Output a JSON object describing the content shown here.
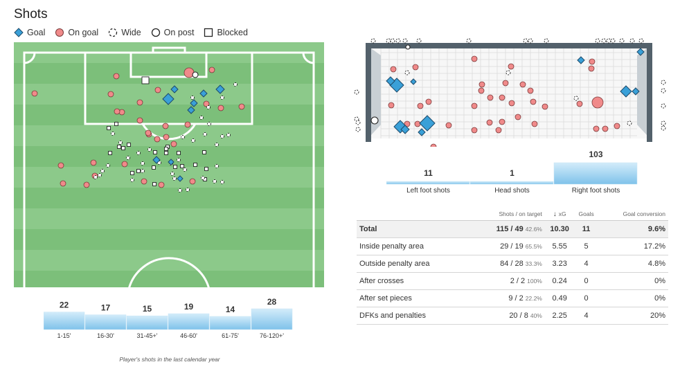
{
  "title": "Shots",
  "legend": [
    {
      "label": "Goal",
      "icon": "diamond-icon",
      "color": "#3aa0d8"
    },
    {
      "label": "On goal",
      "icon": "circle-icon",
      "color": "#f08a8a"
    },
    {
      "label": "Wide",
      "icon": "dashed-circle-icon"
    },
    {
      "label": "On post",
      "icon": "ring-icon"
    },
    {
      "label": "Blocked",
      "icon": "square-icon"
    }
  ],
  "colors": {
    "pitch_light": "#8cc98a",
    "pitch_dark": "#7cbf7a",
    "goal": "#3aa0d8",
    "on_goal": "#f08a8a",
    "bar_top": "#c8e6f6",
    "bar_bottom": "#7fc2ea",
    "goal_frame": "#53616b"
  },
  "minute_bars": [
    {
      "label": "1-15'",
      "value": 22
    },
    {
      "label": "16-30'",
      "value": 17
    },
    {
      "label": "31-45+'",
      "value": 15
    },
    {
      "label": "46-60'",
      "value": 19
    },
    {
      "label": "61-75'",
      "value": 14
    },
    {
      "label": "76-120+'",
      "value": 28
    }
  ],
  "caption": "Player's shots in the last calendar year",
  "foot_bars": [
    {
      "label": "Left foot shots",
      "value": 11
    },
    {
      "label": "Head shots",
      "value": 1
    },
    {
      "label": "Right foot shots",
      "value": 103
    }
  ],
  "table": {
    "headers": [
      "",
      "Shots / on target",
      "xG",
      "Goals",
      "Goal conversion"
    ],
    "sort_arrow": "↓",
    "rows": [
      {
        "label": "Total",
        "shots": "115 / 49",
        "pct": "42.6%",
        "xg": "10.30",
        "goals": "11",
        "conv": "9.6%"
      },
      {
        "label": "Inside penalty area",
        "shots": "29 / 19",
        "pct": "65.5%",
        "xg": "5.55",
        "goals": "5",
        "conv": "17.2%"
      },
      {
        "label": "Outside penalty area",
        "shots": "84 / 28",
        "pct": "33.3%",
        "xg": "3.23",
        "goals": "4",
        "conv": "4.8%"
      },
      {
        "label": "After crosses",
        "shots": "2 / 2",
        "pct": "100%",
        "xg": "0.24",
        "goals": "0",
        "conv": "0%"
      },
      {
        "label": "After set pieces",
        "shots": "9 / 2",
        "pct": "22.2%",
        "xg": "0.49",
        "goals": "0",
        "conv": "0%"
      },
      {
        "label": "DFKs and penalties",
        "shots": "20 / 8",
        "pct": "40%",
        "xg": "2.25",
        "goals": "4",
        "conv": "20%"
      }
    ]
  }
}
